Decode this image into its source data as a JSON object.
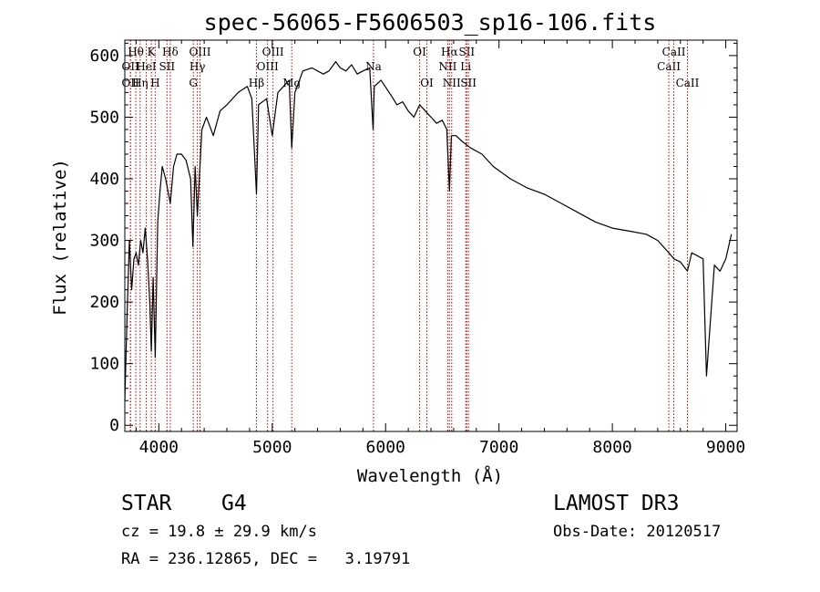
{
  "chart_data": {
    "type": "line",
    "title": "spec-56065-F5606503_sp16-106.fits",
    "xlabel": "Wavelength (Å)",
    "ylabel": "Flux (relative)",
    "xlim": [
      3700,
      9100
    ],
    "ylim": [
      -10,
      625
    ],
    "x_ticks": [
      4000,
      5000,
      6000,
      7000,
      8000,
      9000
    ],
    "y_ticks": [
      0,
      100,
      200,
      300,
      400,
      500,
      600
    ],
    "series": [
      {
        "name": "spectrum",
        "x": [
          3700,
          3720,
          3740,
          3760,
          3780,
          3800,
          3820,
          3840,
          3860,
          3880,
          3900,
          3920,
          3934,
          3950,
          3968,
          3990,
          4010,
          4030,
          4060,
          4101,
          4130,
          4160,
          4200,
          4240,
          4280,
          4300,
          4320,
          4340,
          4380,
          4420,
          4480,
          4540,
          4600,
          4700,
          4780,
          4820,
          4861,
          4880,
          4950,
          5000,
          5050,
          5100,
          5150,
          5172,
          5200,
          5270,
          5350,
          5450,
          5500,
          5560,
          5600,
          5650,
          5700,
          5750,
          5800,
          5860,
          5890,
          5900,
          5960,
          6050,
          6100,
          6150,
          6200,
          6250,
          6300,
          6350,
          6400,
          6450,
          6500,
          6540,
          6563,
          6580,
          6620,
          6680,
          6750,
          6850,
          6950,
          7100,
          7250,
          7400,
          7550,
          7700,
          7850,
          8000,
          8150,
          8300,
          8400,
          8498,
          8542,
          8600,
          8662,
          8700,
          8800,
          8830,
          8900,
          8950,
          9000,
          9050
        ],
        "y": [
          40,
          180,
          300,
          220,
          270,
          280,
          260,
          300,
          280,
          320,
          270,
          200,
          120,
          240,
          110,
          330,
          380,
          420,
          400,
          360,
          420,
          440,
          440,
          430,
          400,
          290,
          420,
          340,
          480,
          500,
          470,
          510,
          520,
          540,
          550,
          530,
          375,
          520,
          530,
          470,
          540,
          550,
          560,
          450,
          540,
          575,
          580,
          570,
          575,
          590,
          580,
          575,
          585,
          570,
          575,
          580,
          480,
          550,
          560,
          535,
          520,
          525,
          510,
          500,
          520,
          510,
          500,
          490,
          495,
          480,
          380,
          470,
          470,
          460,
          450,
          440,
          420,
          400,
          385,
          375,
          360,
          345,
          330,
          320,
          315,
          310,
          300,
          280,
          270,
          265,
          250,
          280,
          270,
          80,
          260,
          250,
          270,
          310
        ]
      }
    ],
    "line_markers": [
      {
        "x": 3750,
        "label": "OII",
        "row": 2
      },
      {
        "x": 3750,
        "label": "OII",
        "row": 1
      },
      {
        "x": 3797,
        "label": "Hθ",
        "row": 0
      },
      {
        "x": 3835,
        "label": "Hη",
        "row": 2
      },
      {
        "x": 3889,
        "label": "HeI",
        "row": 1
      },
      {
        "x": 3934,
        "label": "K",
        "row": 0
      },
      {
        "x": 3968,
        "label": "H",
        "row": 2
      },
      {
        "x": 4072,
        "label": "SII",
        "row": 1
      },
      {
        "x": 4101,
        "label": "Hδ",
        "row": 0
      },
      {
        "x": 4304,
        "label": "G",
        "row": 2
      },
      {
        "x": 4340,
        "label": "Hγ",
        "row": 1
      },
      {
        "x": 4363,
        "label": "OIII",
        "row": 0
      },
      {
        "x": 4861,
        "label": "Hβ",
        "row": 2
      },
      {
        "x": 4959,
        "label": "OIII",
        "row": 1
      },
      {
        "x": 5007,
        "label": "OIII",
        "row": 0
      },
      {
        "x": 5172,
        "label": "Mg",
        "row": 2
      },
      {
        "x": 5893,
        "label": "Na",
        "row": 1
      },
      {
        "x": 6300,
        "label": "OI",
        "row": 0
      },
      {
        "x": 6364,
        "label": "OI",
        "row": 2
      },
      {
        "x": 6548,
        "label": "NII",
        "row": 1
      },
      {
        "x": 6563,
        "label": "Hα",
        "row": 0
      },
      {
        "x": 6583,
        "label": "NII",
        "row": 2
      },
      {
        "x": 6707,
        "label": "Li",
        "row": 1
      },
      {
        "x": 6716,
        "label": "SII",
        "row": 0
      },
      {
        "x": 6731,
        "label": "SII",
        "row": 2
      },
      {
        "x": 8498,
        "label": "CaII",
        "row": 1
      },
      {
        "x": 8542,
        "label": "CaII",
        "row": 0
      },
      {
        "x": 8662,
        "label": "CaII",
        "row": 2
      }
    ]
  },
  "info": {
    "object_class": "STAR",
    "subclass": "G4",
    "survey": "LAMOST DR3",
    "cz": "cz = 19.8 ± 29.9 km/s",
    "obs_date": "Obs-Date: 20120517",
    "coords": "RA = 236.12865, DEC =   3.19791"
  },
  "colors": {
    "line_marker": "#cc0000",
    "spectrum": "#000000"
  }
}
